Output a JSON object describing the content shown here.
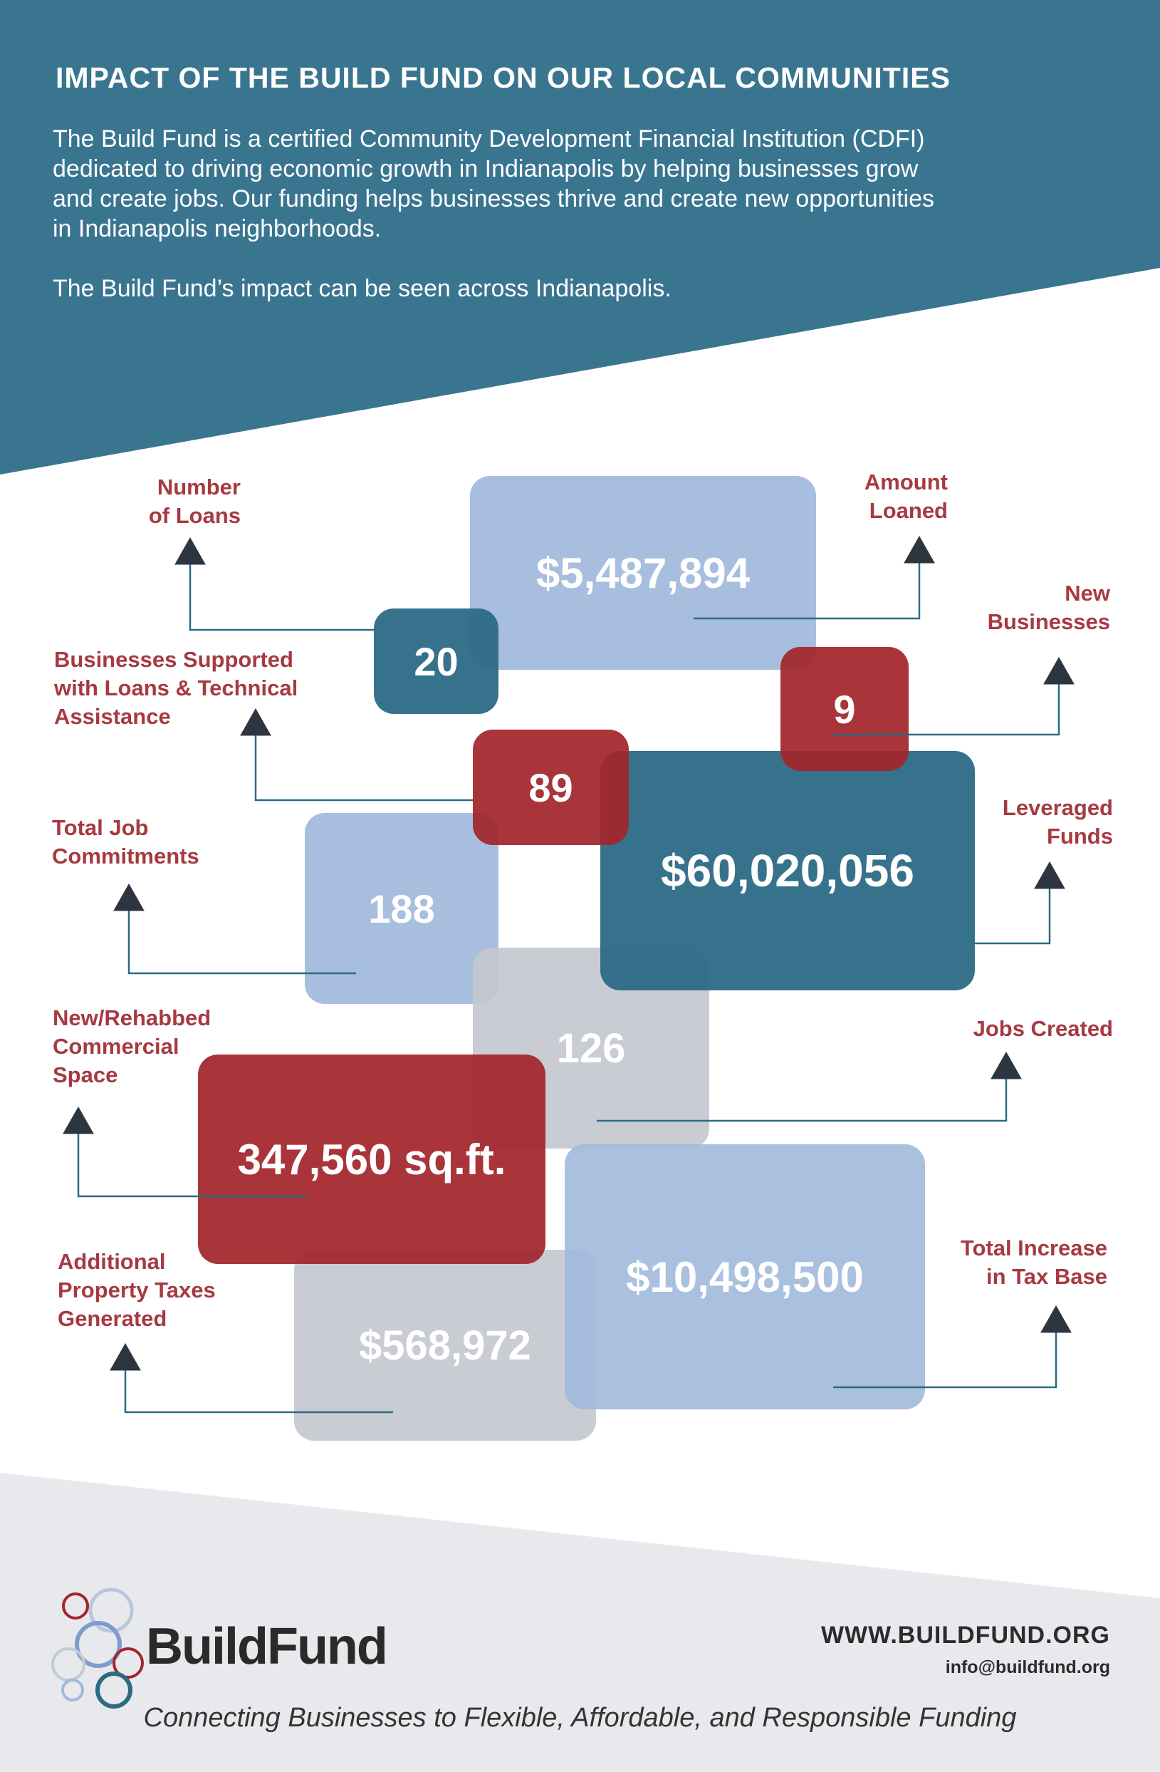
{
  "header": {
    "title": "IMPACT OF THE BUILD FUND ON OUR LOCAL COMMUNITIES",
    "intro_lines": [
      "The Build Fund is a certified Community Development Financial Institution (CDFI)",
      "dedicated to driving economic growth in Indianapolis by helping businesses grow",
      "and create jobs. Our funding helps businesses thrive and create new opportunities",
      "in Indianapolis neighborhoods."
    ],
    "intro2": "The Build Fund’s impact can be seen across Indianapolis."
  },
  "colors": {
    "teal": "#2c6a86",
    "red": "#a3262c",
    "light_blue": "#a0b9dc",
    "gray": "#c4c7ce",
    "label_red": "#a63a40",
    "footer_bg": "#e8e9ec"
  },
  "stats": {
    "amount_loaned": {
      "value": "$5,487,894",
      "label_lines": [
        "Amount",
        "Loaned"
      ]
    },
    "number_of_loans": {
      "value": "20",
      "label_lines": [
        "Number",
        "of Loans"
      ]
    },
    "new_businesses": {
      "value": "9",
      "label_lines": [
        "New",
        "Businesses"
      ]
    },
    "businesses_supported": {
      "value": "89",
      "label_lines": [
        "Businesses Supported",
        "with Loans & Technical",
        "Assistance"
      ]
    },
    "leveraged_funds": {
      "value": "$60,020,056",
      "label_lines": [
        "Leveraged",
        "Funds"
      ]
    },
    "total_job_commitments": {
      "value": "188",
      "label_lines": [
        "Total Job",
        "Commitments"
      ]
    },
    "jobs_created": {
      "value": "126",
      "label_lines": [
        "Jobs Created"
      ]
    },
    "commercial_space": {
      "value": "347,560 sq.ft.",
      "label_lines": [
        "New/Rehabbed",
        "Commercial",
        "Space"
      ]
    },
    "tax_base_increase": {
      "value": "$10,498,500",
      "label_lines": [
        "Total Increase",
        "in Tax Base"
      ]
    },
    "property_taxes": {
      "value": "$568,972",
      "label_lines": [
        "Additional",
        "Property Taxes",
        "Generated"
      ]
    }
  },
  "footer": {
    "logo_text": "BuildFund",
    "website": "WWW.BUILDFUND.ORG",
    "email": "info@buildfund.org",
    "tagline": "Connecting Businesses to Flexible, Affordable, and Responsible Funding"
  }
}
